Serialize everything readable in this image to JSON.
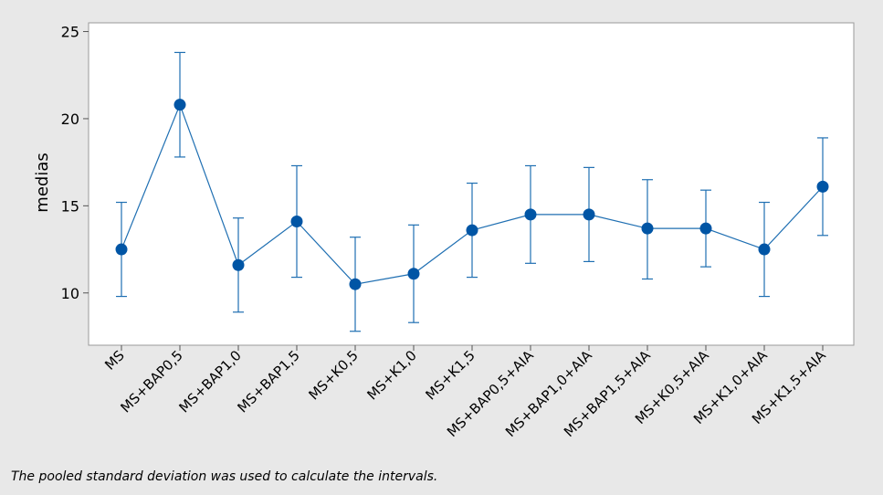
{
  "chart_data": {
    "type": "line",
    "title": "",
    "xlabel": "",
    "ylabel": "medias",
    "ylim": [
      7,
      25.5
    ],
    "yticks": [
      10,
      15,
      20,
      25
    ],
    "grid": false,
    "categories": [
      "MS",
      "MS+BAP0,5",
      "MS+BAP1,0",
      "MS+BAP1,5",
      "MS+K0,5",
      "MS+K1,0",
      "MS+K1,5",
      "MS+BAP0,5+AIA",
      "MS+BAP1,0+AIA",
      "MS+BAP1,5+AIA",
      "MS+K0,5+AIA",
      "MS+K1,0+AIA",
      "MS+K1,5+AIA"
    ],
    "series": [
      {
        "values": [
          12.5,
          20.8,
          11.6,
          14.1,
          10.5,
          11.1,
          13.6,
          14.5,
          14.5,
          13.7,
          13.7,
          12.5,
          16.1
        ],
        "lower": [
          9.8,
          17.8,
          8.9,
          10.9,
          7.8,
          8.3,
          10.9,
          11.7,
          11.8,
          10.8,
          11.5,
          9.8,
          13.3
        ],
        "upper": [
          15.2,
          23.8,
          14.3,
          17.3,
          13.2,
          13.9,
          16.3,
          17.3,
          17.2,
          16.5,
          15.9,
          15.2,
          18.9
        ]
      }
    ],
    "colors": {
      "line": "#1f6fb2",
      "marker": "#0055a5"
    }
  },
  "footnote": "The pooled standard deviation was used to calculate the intervals."
}
